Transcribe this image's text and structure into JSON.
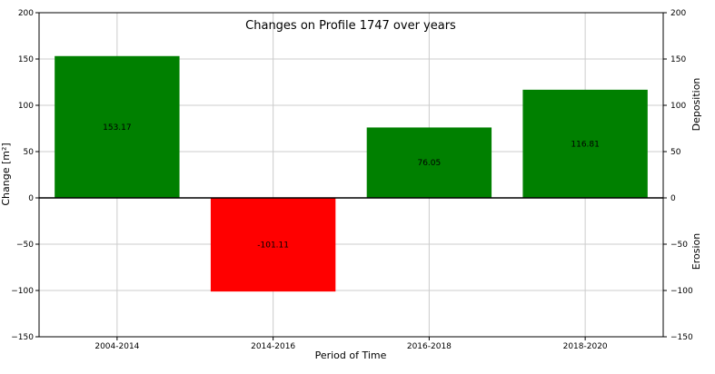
{
  "chart_data": {
    "type": "bar",
    "title": "Changes on Profile 1747 over years",
    "xlabel": "Period of Time",
    "ylabel": "Change [m²]",
    "right_labels": {
      "upper": "Deposition",
      "lower": "Erosion"
    },
    "categories": [
      "2004-2014",
      "2014-2016",
      "2016-2018",
      "2018-2020"
    ],
    "values": [
      153.17,
      -101.11,
      76.05,
      116.81
    ],
    "value_labels": [
      "153.17",
      "-101.11",
      "76.05",
      "116.81"
    ],
    "ylim": [
      -150,
      200
    ],
    "yticks": [
      -150,
      -100,
      -50,
      0,
      50,
      100,
      150,
      200
    ],
    "ytick_labels": [
      "−150",
      "−100",
      "−50",
      "0",
      "50",
      "100",
      "150",
      "200"
    ],
    "grid": true,
    "colors": {
      "positive": "#008000",
      "negative": "#ff0000",
      "zero_line": "#000000"
    }
  }
}
